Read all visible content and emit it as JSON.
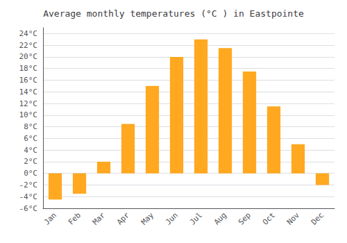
{
  "chart_data": {
    "type": "bar",
    "title": "Average monthly temperatures (°C ) in Eastpointe",
    "categories": [
      "Jan",
      "Feb",
      "Mar",
      "Apr",
      "May",
      "Jun",
      "Jul",
      "Aug",
      "Sep",
      "Oct",
      "Nov",
      "Dec"
    ],
    "values": [
      -4.5,
      -3.5,
      2.0,
      8.5,
      15.0,
      20.0,
      23.0,
      21.5,
      17.5,
      11.5,
      5.0,
      -2.0
    ],
    "color": "#FFA820",
    "ylim": [
      -6,
      25
    ],
    "yticks": [
      {
        "value": -6,
        "label": "-6°C"
      },
      {
        "value": -4,
        "label": "-4°C"
      },
      {
        "value": -2,
        "label": "-2°C"
      },
      {
        "value": 0,
        "label": "0°C"
      },
      {
        "value": 2,
        "label": "2°C"
      },
      {
        "value": 4,
        "label": "4°C"
      },
      {
        "value": 6,
        "label": "6°C"
      },
      {
        "value": 8,
        "label": "8°C"
      },
      {
        "value": 10,
        "label": "10°C"
      },
      {
        "value": 12,
        "label": "12°C"
      },
      {
        "value": 14,
        "label": "14°C"
      },
      {
        "value": 16,
        "label": "16°C"
      },
      {
        "value": 18,
        "label": "18°C"
      },
      {
        "value": 20,
        "label": "20°C"
      },
      {
        "value": 22,
        "label": "22°C"
      },
      {
        "value": 24,
        "label": "24°C"
      }
    ],
    "grid": true
  }
}
